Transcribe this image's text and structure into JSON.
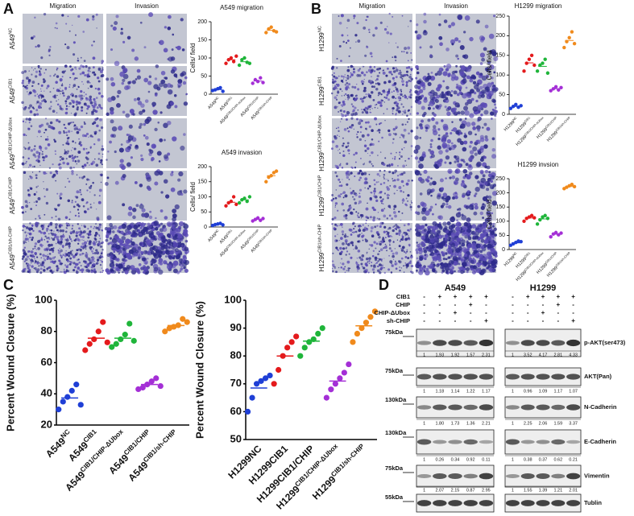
{
  "panel_labels": [
    "A",
    "B",
    "C",
    "D"
  ],
  "panel_a": {
    "headers": [
      "Migration",
      "Invasion"
    ],
    "rows": [
      [
        "A549",
        "NC"
      ],
      [
        "A549",
        "CIB1"
      ],
      [
        "A549",
        "CIB1/CHIP-ΔUbox"
      ],
      [
        "A549",
        "CIB1/CHIP"
      ],
      [
        "A549",
        "CIB1/sh-CHIP"
      ]
    ]
  },
  "panel_b": {
    "headers": [
      "Migration",
      "Invasion"
    ],
    "rows": [
      [
        "H1299",
        "NC"
      ],
      [
        "H1299",
        "CIB1"
      ],
      [
        "H1299",
        "CIB1/CHIP-ΔUbox"
      ],
      [
        "H1299",
        "CIB1/CHIP"
      ],
      [
        "H1299",
        "CIB1/sh-CHIP"
      ]
    ]
  },
  "chart_data": [
    {
      "type": "dot",
      "title": "A549 migration",
      "y_label": "Cells/ field",
      "categories": [
        [
          "A549",
          "NC"
        ],
        [
          "A549",
          "CIB1"
        ],
        [
          "A549",
          "CIB1/CHIP-ΔUbox"
        ],
        [
          "A549",
          "CIB1/CHIP"
        ],
        [
          "A549",
          "CIB1/sh-CHIP"
        ]
      ],
      "colors": [
        "#1f3fd6",
        "#e41a1c",
        "#1fb53a",
        "#a42fd6",
        "#f08a1c"
      ],
      "values": [
        [
          10,
          12,
          15,
          18,
          8
        ],
        [
          85,
          95,
          100,
          90,
          105
        ],
        [
          80,
          95,
          100,
          88,
          85
        ],
        [
          30,
          40,
          35,
          45,
          32
        ],
        [
          170,
          180,
          185,
          175,
          172
        ]
      ],
      "ylim": [
        0,
        200
      ],
      "yticks": [
        0,
        50,
        100,
        150,
        200
      ]
    },
    {
      "type": "dot",
      "title": "A549 invasion",
      "y_label": "Cells/ field",
      "categories": [
        [
          "A549",
          "NC"
        ],
        [
          "A549",
          "CIB1"
        ],
        [
          "A549",
          "CIB1/CHIP-ΔUbox"
        ],
        [
          "A549",
          "CIB1/CHIP"
        ],
        [
          "A549",
          "CIB1/sh-CHIP"
        ]
      ],
      "colors": [
        "#1f3fd6",
        "#e41a1c",
        "#1fb53a",
        "#a42fd6",
        "#f08a1c"
      ],
      "values": [
        [
          5,
          8,
          10,
          12,
          7
        ],
        [
          70,
          80,
          85,
          100,
          75
        ],
        [
          80,
          90,
          95,
          85,
          100
        ],
        [
          20,
          25,
          30,
          22,
          28
        ],
        [
          150,
          165,
          170,
          180,
          185
        ]
      ],
      "ylim": [
        0,
        200
      ],
      "yticks": [
        0,
        50,
        100,
        150,
        200
      ]
    },
    {
      "type": "dot",
      "title": "H1299 migration",
      "y_label": "Cells/ field",
      "categories": [
        [
          "H1299",
          "NC"
        ],
        [
          "H1299",
          "CIB1"
        ],
        [
          "H1299",
          "CIB1/CHIP-ΔUbox"
        ],
        [
          "H1299",
          "CIB1/CHIP"
        ],
        [
          "H1299",
          "CIB1/sh-CHIP"
        ]
      ],
      "colors": [
        "#1f3fd6",
        "#e41a1c",
        "#1fb53a",
        "#a42fd6",
        "#f08a1c"
      ],
      "values": [
        [
          15,
          20,
          25,
          18,
          22
        ],
        [
          110,
          130,
          140,
          150,
          125
        ],
        [
          110,
          125,
          130,
          140,
          105
        ],
        [
          60,
          65,
          70,
          62,
          68
        ],
        [
          170,
          185,
          195,
          210,
          180
        ]
      ],
      "ylim": [
        0,
        250
      ],
      "yticks": [
        0,
        50,
        100,
        150,
        200,
        250
      ]
    },
    {
      "type": "dot",
      "title": "H1299 invsion",
      "y_label": "Cells/ field",
      "categories": [
        [
          "H1299",
          "NC"
        ],
        [
          "H1299",
          "CIB1"
        ],
        [
          "H1299",
          "CIB1/CHIP-ΔUbox"
        ],
        [
          "H1299",
          "CIB1/CHIP"
        ],
        [
          "H1299",
          "CIB1/sh-CHIP"
        ]
      ],
      "colors": [
        "#1f3fd6",
        "#e41a1c",
        "#1fb53a",
        "#a42fd6",
        "#f08a1c"
      ],
      "values": [
        [
          15,
          20,
          25,
          30,
          28
        ],
        [
          100,
          110,
          115,
          120,
          112
        ],
        [
          90,
          105,
          115,
          120,
          110
        ],
        [
          45,
          55,
          60,
          52,
          58
        ],
        [
          215,
          220,
          225,
          230,
          222
        ]
      ],
      "ylim": [
        0,
        250
      ],
      "yticks": [
        0,
        50,
        100,
        150,
        200,
        250
      ]
    },
    {
      "type": "dot",
      "y_label": "Percent Wound Closure (%)",
      "categories": [
        [
          "A549",
          "NC"
        ],
        [
          "A549",
          "CIB1"
        ],
        [
          "A549",
          "CIB1/CHIP-ΔUbox"
        ],
        [
          "A549",
          "CIB1/CHIP"
        ],
        [
          "A549",
          "CIB1/sh-CHIP"
        ]
      ],
      "colors": [
        "#1f3fd6",
        "#e41a1c",
        "#1fb53a",
        "#a42fd6",
        "#f08a1c"
      ],
      "values": [
        [
          30,
          35,
          38,
          42,
          46,
          33
        ],
        [
          68,
          72,
          75,
          80,
          86,
          73
        ],
        [
          70,
          72,
          75,
          78,
          85,
          74
        ],
        [
          43,
          44,
          46,
          48,
          50,
          45
        ],
        [
          80,
          82,
          83,
          84,
          88,
          86
        ]
      ],
      "ylim": [
        20,
        100
      ],
      "yticks": [
        20,
        40,
        60,
        80,
        100
      ]
    },
    {
      "type": "dot",
      "y_label": "Percent Wound Closure (%)",
      "categories": [
        [
          "H1299NC"
        ],
        [
          "H1299CIB1"
        ],
        [
          "H1299CIB1/CHIP"
        ],
        [
          "H1299",
          "CIB1/CHIP-ΔUbox"
        ],
        [
          "H1299",
          "CIB1/sh-CHIP"
        ]
      ],
      "colors": [
        "#1f3fd6",
        "#e41a1c",
        "#1fb53a",
        "#a42fd6",
        "#f08a1c"
      ],
      "values": [
        [
          60,
          65,
          70,
          71,
          72,
          73
        ],
        [
          70,
          75,
          80,
          83,
          85,
          87
        ],
        [
          80,
          83,
          85,
          86,
          88,
          90
        ],
        [
          65,
          68,
          70,
          72,
          74,
          77
        ],
        [
          85,
          88,
          90,
          92,
          94,
          96
        ]
      ],
      "ylim": [
        50,
        100
      ],
      "yticks": [
        50,
        60,
        70,
        80,
        90,
        100
      ]
    }
  ],
  "blot": {
    "cell_lines": [
      "A549",
      "H1299"
    ],
    "treatments": [
      {
        "name": "CIB1",
        "signs": [
          "-",
          "+",
          "+",
          "+",
          "+"
        ]
      },
      {
        "name": "CHIP",
        "signs": [
          "-",
          "-",
          "-",
          "+",
          "-"
        ]
      },
      {
        "name": "CHIP-ΔUbox",
        "signs": [
          "-",
          "-",
          "+",
          "-",
          "-"
        ]
      },
      {
        "name": "sh-CHIP",
        "signs": [
          "-",
          "-",
          "-",
          "-",
          "+"
        ]
      }
    ],
    "rows": [
      {
        "marker": "75kDa",
        "protein": "p-AKT(ser473)",
        "values": [
          [
            "1",
            "1.93",
            "1.92",
            "1.57",
            "2.31"
          ],
          [
            "1",
            "3.52",
            "4.17",
            "2.81",
            "4.33"
          ]
        ]
      },
      {
        "marker": "75kDa",
        "protein": "AKT(Pan)",
        "values": [
          [
            "1",
            "1.18",
            "1.14",
            "1.22",
            "1.17"
          ],
          [
            "1",
            "0.96",
            "1.09",
            "1.17",
            "1.07"
          ]
        ]
      },
      {
        "marker": "130kDa",
        "protein": "N-Cadherin",
        "values": [
          [
            "1",
            "1.80",
            "1.73",
            "1.36",
            "2.21"
          ],
          [
            "1",
            "2.25",
            "2.06",
            "1.59",
            "3.37"
          ]
        ]
      },
      {
        "marker": "130kDa",
        "protein": "E-Cadherin",
        "values": [
          [
            "1",
            "0.26",
            "0.34",
            "0.92",
            "0.11"
          ],
          [
            "1",
            "0.38",
            "0.37",
            "0.62",
            "0.21"
          ]
        ]
      },
      {
        "marker": "75kDa",
        "protein": "Vimentin",
        "values": [
          [
            "1",
            "2.07",
            "2.15",
            "0.87",
            "2.95"
          ],
          [
            "1",
            "1.55",
            "1.39",
            "1.21",
            "2.01"
          ]
        ]
      },
      {
        "marker": "55kDa",
        "protein": "Tublin"
      }
    ]
  }
}
